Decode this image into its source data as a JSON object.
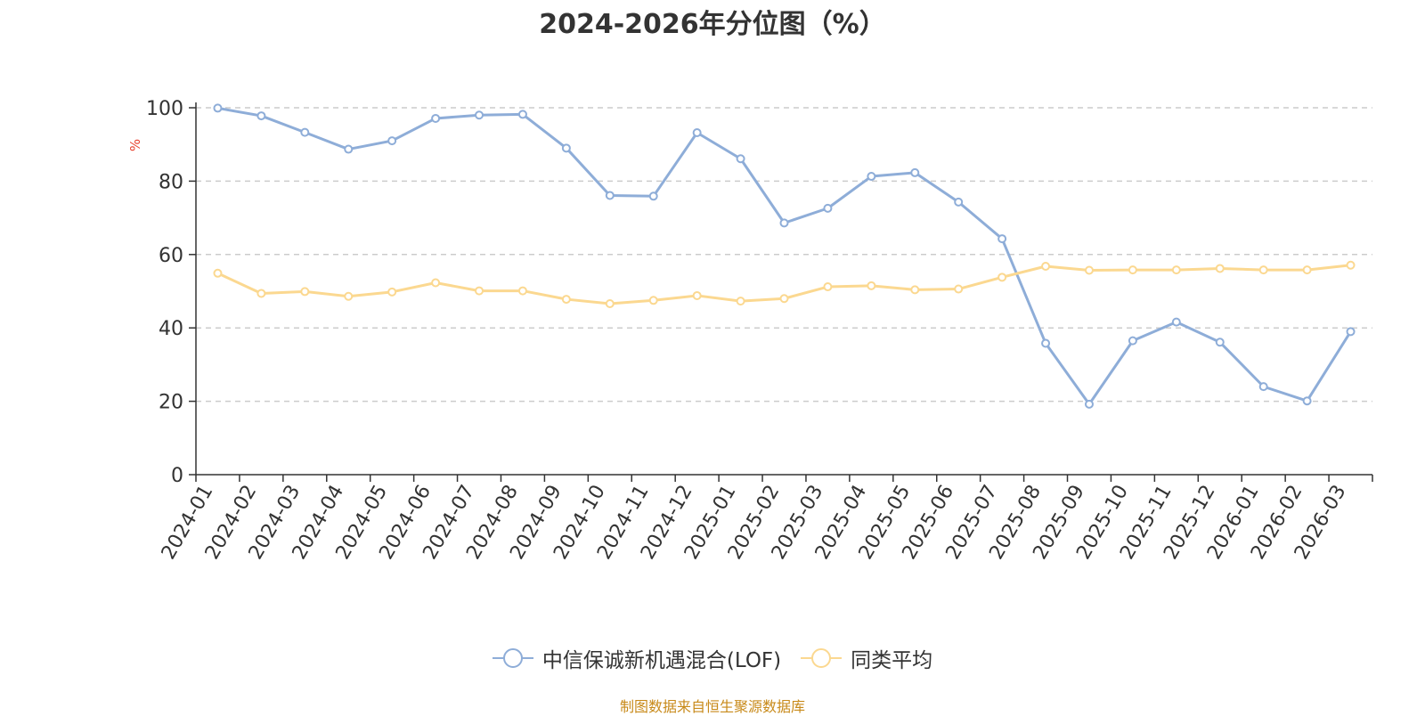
{
  "chart_data": {
    "type": "line",
    "title": "2024-2026年分位图（%）",
    "ylabel": "%",
    "xlabel": "",
    "ylim": [
      0,
      100
    ],
    "yticks": [
      0,
      20,
      40,
      60,
      80,
      100
    ],
    "grid": true,
    "legend_position": "bottom-center",
    "categories": [
      "2024-01",
      "2024-02",
      "2024-03",
      "2024-04",
      "2024-05",
      "2024-06",
      "2024-07",
      "2024-08",
      "2024-09",
      "2024-10",
      "2024-11",
      "2024-12",
      "2025-01",
      "2025-02",
      "2025-03",
      "2025-04",
      "2025-05",
      "2025-06",
      "2025-07",
      "2025-08",
      "2025-09",
      "2025-10",
      "2025-11",
      "2025-12",
      "2026-01",
      "2026-02",
      "2026-03"
    ],
    "series": [
      {
        "name": "中信保诚新机遇混合(LOF)",
        "color": "#8eadd8",
        "values": [
          99.9,
          97.8,
          93.3,
          88.7,
          91.0,
          97.1,
          98.0,
          98.2,
          89.0,
          76.1,
          75.9,
          93.2,
          86.1,
          68.6,
          72.6,
          81.3,
          82.3,
          74.3,
          64.3,
          35.8,
          19.2,
          36.5,
          41.6,
          36.1,
          24.0,
          20.1,
          39.0
        ]
      },
      {
        "name": "同类平均",
        "color": "#fbd890",
        "values": [
          54.9,
          49.4,
          49.9,
          48.6,
          49.8,
          52.3,
          50.1,
          50.1,
          47.8,
          46.6,
          47.5,
          48.8,
          47.3,
          48.0,
          51.2,
          51.5,
          50.4,
          50.6,
          53.8,
          56.8,
          55.7,
          55.8,
          55.8,
          56.2,
          55.8,
          55.8,
          57.1
        ]
      }
    ]
  },
  "footer": {
    "source": "制图数据来自恒生聚源数据库"
  }
}
